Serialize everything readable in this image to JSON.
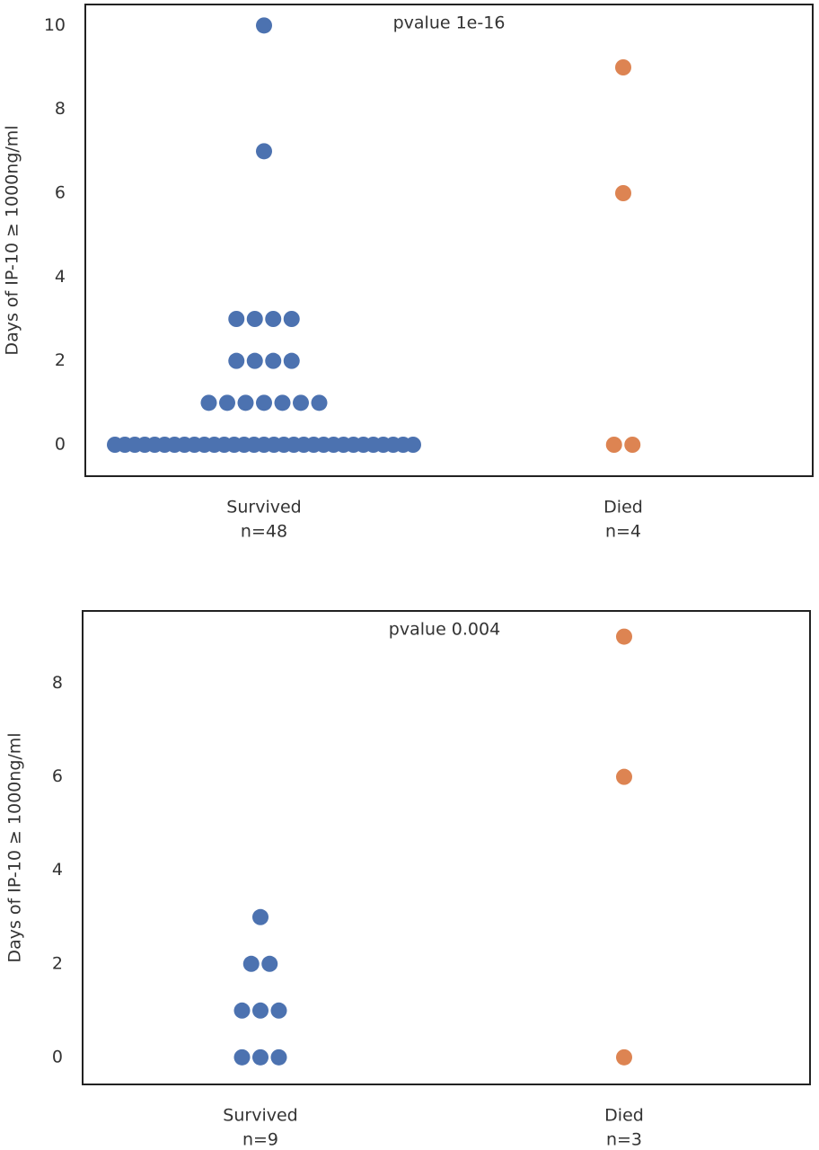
{
  "chart_data": [
    {
      "type": "swarm",
      "annotation": "pvalue 1e-16",
      "ylabel": "Days of IP-10 ≥ 1000ng/ml",
      "categories": [
        "Survived",
        "Died"
      ],
      "n_labels": [
        "n=48",
        "n=4"
      ],
      "colors": [
        "#4c72b0",
        "#dd8452"
      ],
      "values": [
        [
          10,
          7,
          3,
          3,
          3,
          3,
          2,
          2,
          2,
          2,
          1,
          1,
          1,
          1,
          1,
          1,
          1,
          0,
          0,
          0,
          0,
          0,
          0,
          0,
          0,
          0,
          0,
          0,
          0,
          0,
          0,
          0,
          0,
          0,
          0,
          0,
          0,
          0,
          0,
          0,
          0,
          0,
          0,
          0,
          0,
          0,
          0,
          0
        ],
        [
          9,
          6,
          0,
          0
        ]
      ],
      "ylim": [
        -0.75,
        10.5
      ],
      "yticks": [
        0,
        2,
        4,
        6,
        8,
        10
      ]
    },
    {
      "type": "swarm",
      "annotation": "pvalue 0.004",
      "ylabel": "Days of IP-10 ≥ 1000ng/ml",
      "categories": [
        "Survived",
        "Died"
      ],
      "n_labels": [
        "n=9",
        "n=3"
      ],
      "colors": [
        "#4c72b0",
        "#dd8452"
      ],
      "values": [
        [
          3,
          2,
          2,
          1,
          1,
          1,
          0,
          0,
          0
        ],
        [
          9,
          6,
          0
        ]
      ],
      "ylim": [
        -0.58,
        9.55
      ],
      "yticks": [
        0,
        2,
        4,
        6,
        8
      ]
    }
  ]
}
